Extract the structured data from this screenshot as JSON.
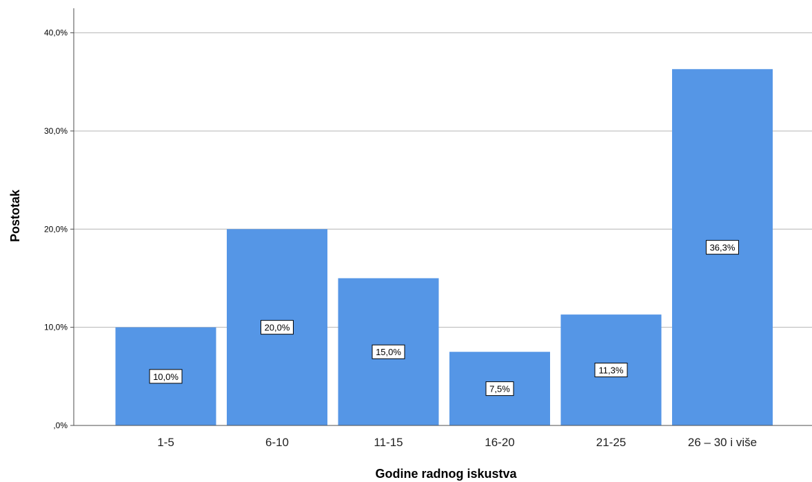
{
  "chart_data": {
    "type": "bar",
    "title": "",
    "xlabel": "Godine radnog iskustva",
    "ylabel": "Postotak",
    "categories": [
      "1-5",
      "6-10",
      "11-15",
      "16-20",
      "21-25",
      "26 – 30 i više"
    ],
    "values": [
      10.0,
      20.0,
      15.0,
      7.5,
      11.3,
      36.3
    ],
    "data_labels": [
      "10,0%",
      "20,0%",
      "15,0%",
      "7,5%",
      "11,3%",
      "36,3%"
    ],
    "y_ticks": [
      0,
      10,
      20,
      30,
      40
    ],
    "y_tick_labels": [
      ",0%",
      "10,0%",
      "20,0%",
      "30,0%",
      "40,0%"
    ],
    "ylim": [
      0,
      42.5
    ],
    "grid": true,
    "bar_color": "#5596e6",
    "grid_color": "#b4b4b4",
    "axis_color": "#4d4d4d"
  }
}
